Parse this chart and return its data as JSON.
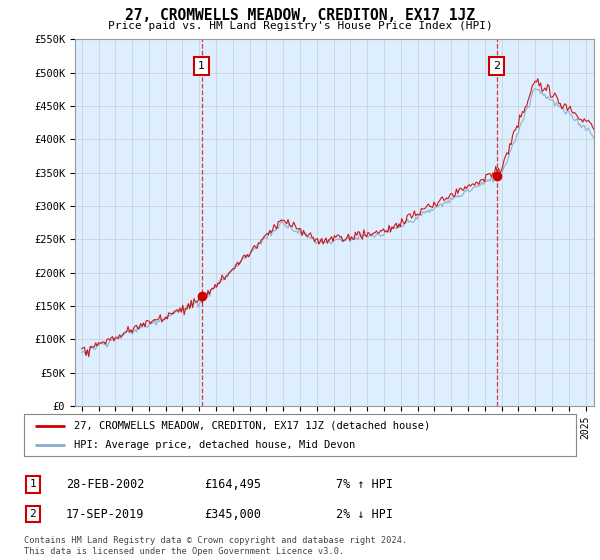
{
  "title": "27, CROMWELLS MEADOW, CREDITON, EX17 1JZ",
  "subtitle": "Price paid vs. HM Land Registry's House Price Index (HPI)",
  "legend_line1": "27, CROMWELLS MEADOW, CREDITON, EX17 1JZ (detached house)",
  "legend_line2": "HPI: Average price, detached house, Mid Devon",
  "footnote": "Contains HM Land Registry data © Crown copyright and database right 2024.\nThis data is licensed under the Open Government Licence v3.0.",
  "table_rows": [
    {
      "num": "1",
      "date": "28-FEB-2002",
      "price": "£164,495",
      "hpi": "7% ↑ HPI"
    },
    {
      "num": "2",
      "date": "17-SEP-2019",
      "price": "£345,000",
      "hpi": "2% ↓ HPI"
    }
  ],
  "marker1_year": 2002.15,
  "marker2_year": 2019.71,
  "marker1_price": 164495,
  "marker2_price": 345000,
  "ylim": [
    0,
    550000
  ],
  "yticks": [
    0,
    50000,
    100000,
    150000,
    200000,
    250000,
    300000,
    350000,
    400000,
    450000,
    500000,
    550000
  ],
  "ytick_labels": [
    "£0",
    "£50K",
    "£100K",
    "£150K",
    "£200K",
    "£250K",
    "£300K",
    "£350K",
    "£400K",
    "£450K",
    "£500K",
    "£550K"
  ],
  "line_color_red": "#cc0000",
  "line_color_blue": "#88aacc",
  "grid_color": "#cccccc",
  "bg_color": "#ffffff",
  "plot_bg_color": "#ddeeff",
  "marker_box_color": "#cc0000",
  "xlim_left": 1994.6,
  "xlim_right": 2025.5
}
